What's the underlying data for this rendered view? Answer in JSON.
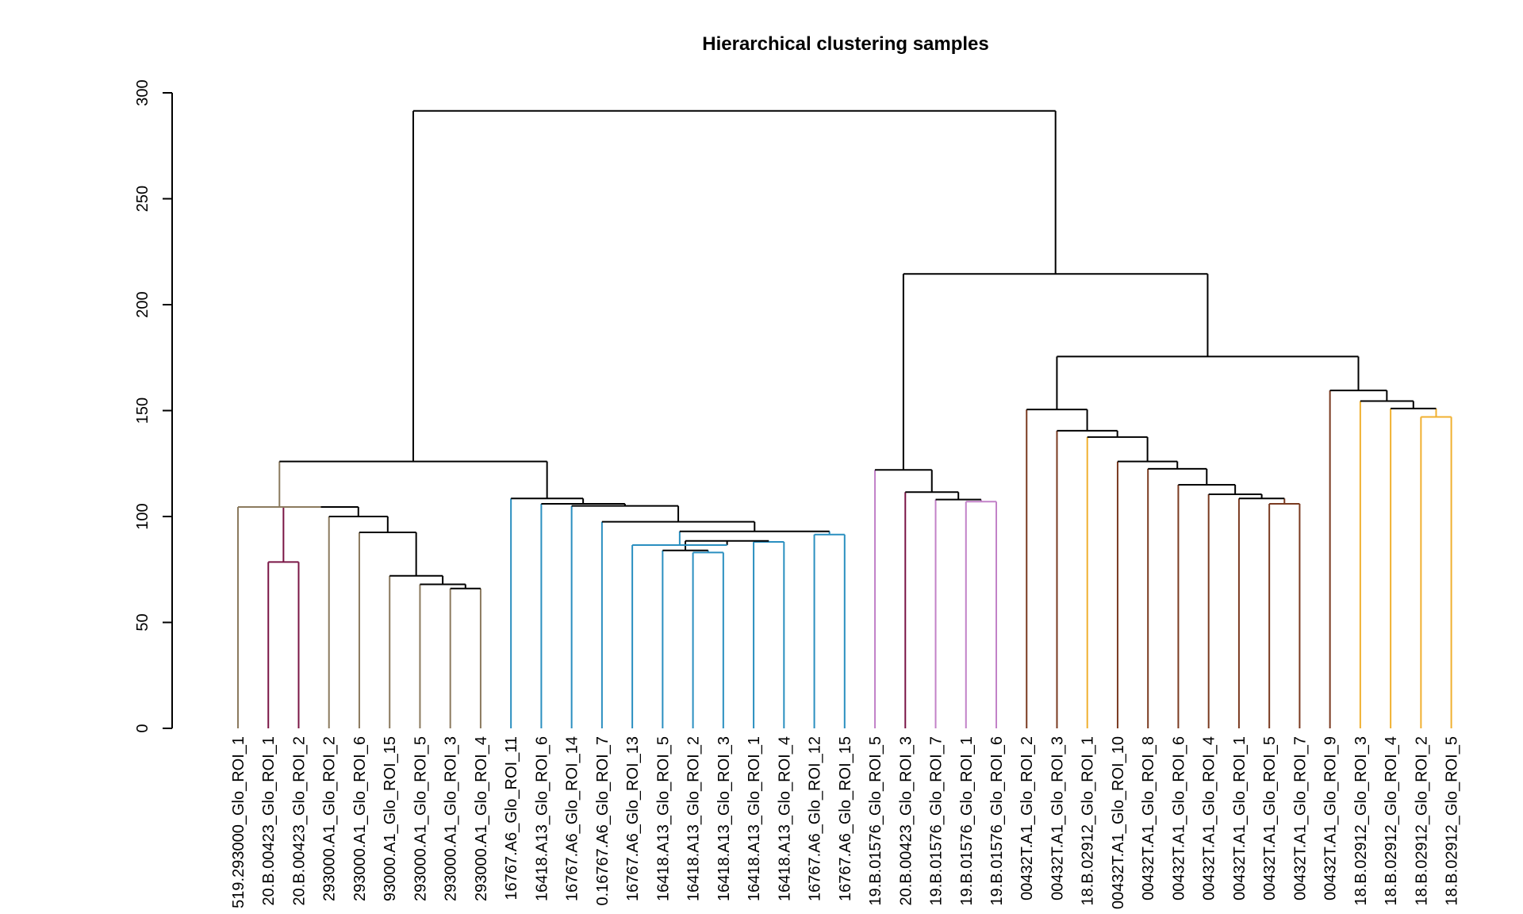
{
  "chart_data": {
    "type": "dendrogram",
    "title": "Hierarchical clustering samples",
    "xlabel": "",
    "ylabel": "",
    "ylim": [
      0,
      300
    ],
    "yticks": [
      0,
      50,
      100,
      150,
      200,
      250,
      300
    ],
    "leaves": [
      {
        "label": "519.293000_Glo_ROI_1",
        "color": "#8b7a5e"
      },
      {
        "label": "20.B.00423_Glo_ROI_1",
        "color": "#7a1646"
      },
      {
        "label": "20.B.00423_Glo_ROI_2",
        "color": "#7a1646"
      },
      {
        "label": "293000.A1_Glo_ROI_2",
        "color": "#8b7a5e"
      },
      {
        "label": "293000.A1_Glo_ROI_6",
        "color": "#8b7a5e"
      },
      {
        "label": "93000.A1_Glo_ROI_15",
        "color": "#8b7a5e"
      },
      {
        "label": "293000.A1_Glo_ROI_5",
        "color": "#8b7a5e"
      },
      {
        "label": "293000.A1_Glo_ROI_3",
        "color": "#8b7a5e"
      },
      {
        "label": "293000.A1_Glo_ROI_4",
        "color": "#8b7a5e"
      },
      {
        "label": "16767.A6_Glo_ROI_11",
        "color": "#2a8fc0"
      },
      {
        "label": "16418.A13_Glo_ROI_6",
        "color": "#2a8fc0"
      },
      {
        "label": "16767.A6_Glo_ROI_14",
        "color": "#2a8fc0"
      },
      {
        "label": "0.16767.A6_Glo_ROI_7",
        "color": "#2a8fc0"
      },
      {
        "label": "16767.A6_Glo_ROI_13",
        "color": "#2a8fc0"
      },
      {
        "label": "16418.A13_Glo_ROI_5",
        "color": "#2a8fc0"
      },
      {
        "label": "16418.A13_Glo_ROI_2",
        "color": "#2a8fc0"
      },
      {
        "label": "16418.A13_Glo_ROI_3",
        "color": "#2a8fc0"
      },
      {
        "label": "16418.A13_Glo_ROI_1",
        "color": "#2a8fc0"
      },
      {
        "label": "16418.A13_Glo_ROI_4",
        "color": "#2a8fc0"
      },
      {
        "label": "16767.A6_Glo_ROI_12",
        "color": "#2a8fc0"
      },
      {
        "label": "16767.A6_Glo_ROI_15",
        "color": "#2a8fc0"
      },
      {
        "label": "19.B.01576_Glo_ROI_5",
        "color": "#c282c8"
      },
      {
        "label": "20.B.00423_Glo_ROI_3",
        "color": "#7a1646"
      },
      {
        "label": "19.B.01576_Glo_ROI_7",
        "color": "#c282c8"
      },
      {
        "label": "19.B.01576_Glo_ROI_1",
        "color": "#c282c8"
      },
      {
        "label": "19.B.01576_Glo_ROI_6",
        "color": "#c282c8"
      },
      {
        "label": "00432T.A1_Glo_ROI_2",
        "color": "#7a3a20"
      },
      {
        "label": "00432T.A1_Glo_ROI_3",
        "color": "#7a3a20"
      },
      {
        "label": "18.B.02912_Glo_ROI_1",
        "color": "#f0b030"
      },
      {
        "label": "00432T.A1_Glo_ROI_10",
        "color": "#7a3a20"
      },
      {
        "label": "00432T.A1_Glo_ROI_8",
        "color": "#7a3a20"
      },
      {
        "label": "00432T.A1_Glo_ROI_6",
        "color": "#7a3a20"
      },
      {
        "label": "00432T.A1_Glo_ROI_4",
        "color": "#7a3a20"
      },
      {
        "label": "00432T.A1_Glo_ROI_1",
        "color": "#7a3a20"
      },
      {
        "label": "00432T.A1_Glo_ROI_5",
        "color": "#7a3a20"
      },
      {
        "label": "00432T.A1_Glo_ROI_7",
        "color": "#7a3a20"
      },
      {
        "label": "00432T.A1_Glo_ROI_9",
        "color": "#7a3a20"
      },
      {
        "label": "18.B.02912_Glo_ROI_3",
        "color": "#f0b030"
      },
      {
        "label": "18.B.02912_Glo_ROI_4",
        "color": "#f0b030"
      },
      {
        "label": "18.B.02912_Glo_ROI_2",
        "color": "#f0b030"
      },
      {
        "label": "18.B.02912_Glo_ROI_5",
        "color": "#f0b030"
      }
    ],
    "merges": [
      {
        "id": "n1",
        "left": 1,
        "right": 2,
        "height": 78.5,
        "color": "#7a1646"
      },
      {
        "id": "n2",
        "left": 7,
        "right": 8,
        "height": 66,
        "color": "#000000"
      },
      {
        "id": "n3",
        "left": 6,
        "right": "n2",
        "height": 68,
        "color": "#000000"
      },
      {
        "id": "n4",
        "left": 5,
        "right": "n3",
        "height": 72,
        "color": "#000000"
      },
      {
        "id": "n5",
        "left": 4,
        "right": "n4",
        "height": 92.5,
        "color": "#000000"
      },
      {
        "id": "n6",
        "left": 3,
        "right": "n5",
        "height": 100,
        "color": "#000000"
      },
      {
        "id": "n7",
        "left": "n1",
        "right": "n6",
        "height": 104.5,
        "color": "#000000"
      },
      {
        "id": "n8",
        "left": 0,
        "right": "n7",
        "height": 104.5,
        "color": "#8b7a5e"
      },
      {
        "id": "n9",
        "left": 15,
        "right": 16,
        "height": 83,
        "color": "#2a8fc0"
      },
      {
        "id": "n10",
        "left": 14,
        "right": "n9",
        "height": 84,
        "color": "#000000"
      },
      {
        "id": "n11",
        "left": 17,
        "right": 18,
        "height": 88,
        "color": "#2a8fc0"
      },
      {
        "id": "n12",
        "left": "n10",
        "right": "n11",
        "height": 88.5,
        "color": "#000000"
      },
      {
        "id": "n13",
        "left": 13,
        "right": "n12",
        "height": 86.5,
        "color": "#2a8fc0"
      },
      {
        "id": "n14",
        "left": 19,
        "right": 20,
        "height": 91.5,
        "color": "#2a8fc0"
      },
      {
        "id": "n15",
        "left": "n13",
        "right": "n14",
        "height": 93,
        "color": "#000000"
      },
      {
        "id": "n16",
        "left": 12,
        "right": "n15",
        "height": 97.5,
        "color": "#000000"
      },
      {
        "id": "n17",
        "left": 11,
        "right": "n16",
        "height": 105,
        "color": "#000000"
      },
      {
        "id": "n18",
        "left": 10,
        "right": "n17",
        "height": 106,
        "color": "#000000"
      },
      {
        "id": "n19",
        "left": 9,
        "right": "n18",
        "height": 108.5,
        "color": "#000000"
      },
      {
        "id": "n20",
        "left": "n8",
        "right": "n19",
        "height": 126,
        "color": "#000000"
      },
      {
        "id": "n21",
        "left": 24,
        "right": 25,
        "height": 107,
        "color": "#c282c8"
      },
      {
        "id": "n22",
        "left": 23,
        "right": "n21",
        "height": 108,
        "color": "#000000"
      },
      {
        "id": "n23",
        "left": 22,
        "right": "n22",
        "height": 111.5,
        "color": "#000000"
      },
      {
        "id": "n24",
        "left": 21,
        "right": "n23",
        "height": 122,
        "color": "#000000"
      },
      {
        "id": "n25",
        "left": 34,
        "right": 35,
        "height": 106,
        "color": "#7a3a20"
      },
      {
        "id": "n26",
        "left": 33,
        "right": "n25",
        "height": 108.5,
        "color": "#000000"
      },
      {
        "id": "n27",
        "left": 32,
        "right": "n26",
        "height": 110.5,
        "color": "#000000"
      },
      {
        "id": "n28",
        "left": 31,
        "right": "n27",
        "height": 115,
        "color": "#000000"
      },
      {
        "id": "n29",
        "left": 30,
        "right": "n28",
        "height": 122.5,
        "color": "#000000"
      },
      {
        "id": "n30",
        "left": 29,
        "right": "n29",
        "height": 126,
        "color": "#000000"
      },
      {
        "id": "n31",
        "left": 28,
        "right": "n30",
        "height": 137.5,
        "color": "#000000"
      },
      {
        "id": "n32",
        "left": 27,
        "right": "n31",
        "height": 140.5,
        "color": "#000000"
      },
      {
        "id": "n33",
        "left": 26,
        "right": "n32",
        "height": 150.5,
        "color": "#000000"
      },
      {
        "id": "n34",
        "left": 39,
        "right": 40,
        "height": 147,
        "color": "#f0b030"
      },
      {
        "id": "n35",
        "left": 38,
        "right": "n34",
        "height": 151,
        "color": "#000000"
      },
      {
        "id": "n36",
        "left": 37,
        "right": "n35",
        "height": 154.5,
        "color": "#000000"
      },
      {
        "id": "n37",
        "left": 36,
        "right": "n36",
        "height": 159.5,
        "color": "#000000"
      },
      {
        "id": "n38",
        "left": "n33",
        "right": "n37",
        "height": 175.5,
        "color": "#000000"
      },
      {
        "id": "n39",
        "left": "n24",
        "right": "n38",
        "height": 214.5,
        "color": "#000000"
      },
      {
        "id": "n40",
        "left": "n20",
        "right": "n39",
        "height": 291.5,
        "color": "#000000"
      }
    ]
  }
}
